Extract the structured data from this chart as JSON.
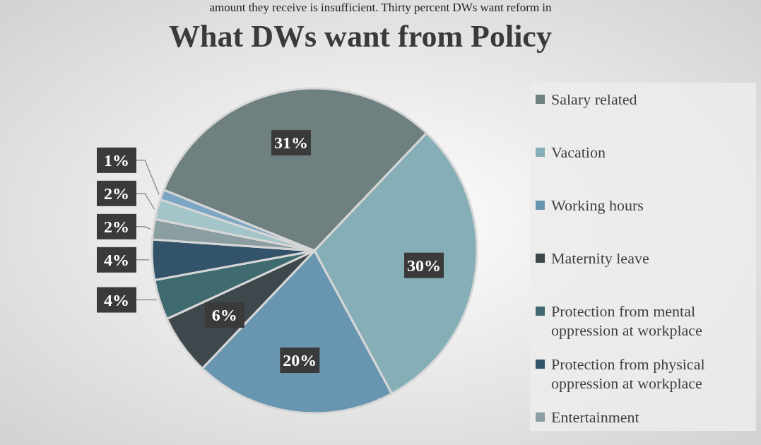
{
  "chart_data": {
    "type": "pie",
    "title": "What DWs want from Policy",
    "annotations": [
      "amount they receive is insufficient. Thirty percent DWs want reform in"
    ],
    "categories": [
      "Salary related",
      "Vacation",
      "Working hours",
      "Maternity leave",
      "Protection from mental oppression at workplace",
      "Protection from physical oppression at workplace",
      "Entertainment",
      null,
      null
    ],
    "values": [
      31,
      30,
      20,
      6,
      4,
      4,
      2,
      2,
      1
    ],
    "value_labels": [
      "31%",
      "30%",
      "20%",
      "6%",
      "4%",
      "4%",
      "2%",
      "2%",
      "1%"
    ],
    "colors": [
      "#6e8080",
      "#86aeb7",
      "#6896b0",
      "#3e474b",
      "#3e6a70",
      "#33536a",
      "#8a9da0",
      "#a3c4c9",
      "#7ba6c4"
    ],
    "legend": "right"
  }
}
